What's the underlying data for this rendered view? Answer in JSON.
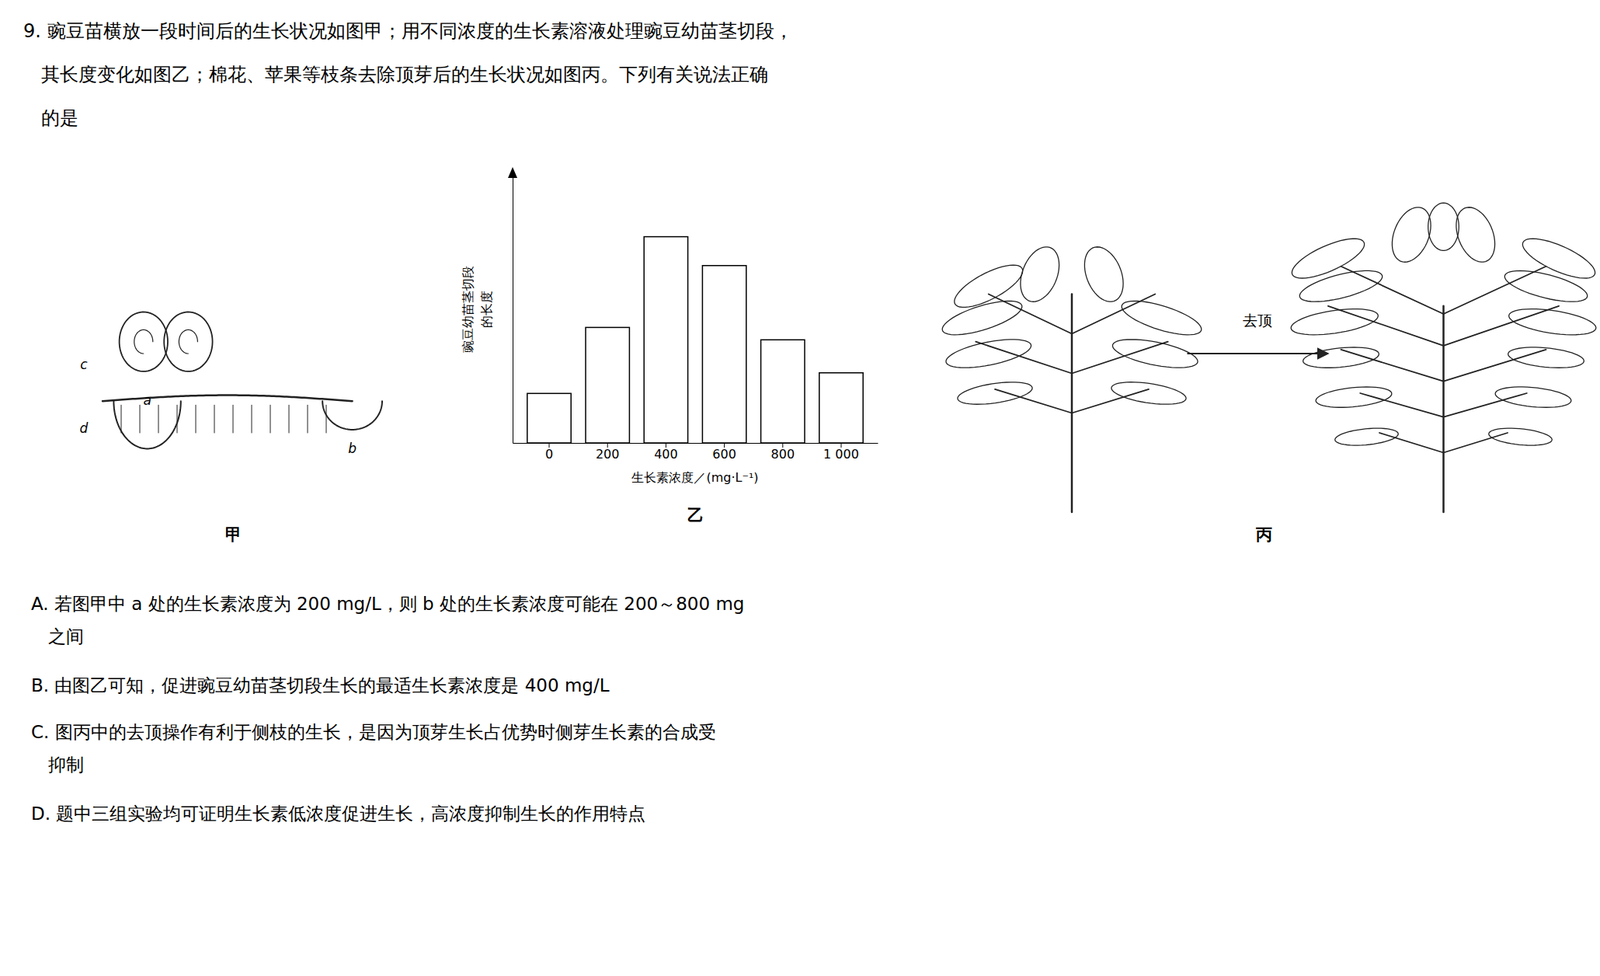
{
  "chart_data": {
    "type": "bar",
    "title": "9. 豌豆苗横放一段时间后的生长状况如图甲；用不同浓度的生长素溶液处理豌豆幼苗茎切段，\n   其长度变化如图乙；棉花、苹果等枝条去除顶芽后的生长状况如图丙。下列有关说法正确\n   的是",
    "xlabel": "生长素浓度／(mg·L⁻¹)",
    "ylabel": "豌豆幼苗茎切段\n的长度",
    "categories": [
      "0",
      "200",
      "400",
      "600",
      "800",
      "1 000"
    ],
    "values": [
      1.2,
      2.8,
      5.0,
      4.3,
      2.5,
      1.7
    ],
    "color": "#ffffff",
    "ylim": [
      0,
      6.5
    ],
    "yticks": [],
    "tick_labels": "x",
    "grid": false,
    "annotations": [
      "甲",
      "乙",
      "丙",
      "a",
      "b",
      "c",
      "d",
      "去顶",
      "A. 若图甲中 a 处的生长素浓度为 200 mg/L，则 b 处的生长素浓度可能在 200～800 mg\n   之间",
      "B. 由图乙可知，促进豌豆幼苗茎切段生长的最适生长素浓度是 400 mg/L",
      "C. 图丙中的去顶操作有利于侧枝的生长，是因为顶芽生长占优势时侧芽生长素的合成受\n   抑制",
      "D. 题中三组实验均可证明生长素低浓度促进生长，高浓度抑制生长的作用特点"
    ]
  }
}
